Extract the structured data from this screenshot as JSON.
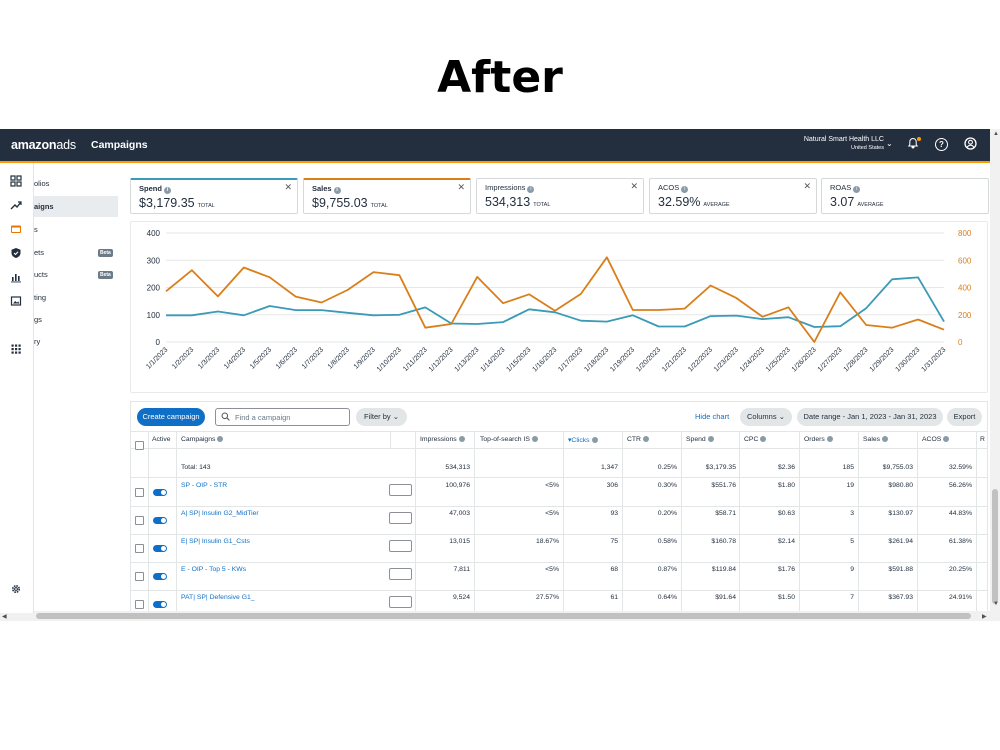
{
  "headline": "After",
  "app": {
    "logo_bold": "amazon",
    "logo_light": "ads",
    "nav_title": "Campaigns",
    "account_name": "Natural Smart Health LLC",
    "account_region": "United States"
  },
  "sidebar": {
    "items": [
      {
        "icon": "dashboard-icon",
        "label": "olios"
      },
      {
        "icon": "trend-icon",
        "label": "aigns"
      },
      {
        "icon": "wallet-icon",
        "label": "s"
      },
      {
        "icon": "shield-icon",
        "label": "ets",
        "badge": "Beta"
      },
      {
        "icon": "bar-chart-icon",
        "label": "ucts",
        "badge": "Beta"
      },
      {
        "icon": "image-icon",
        "label": "ting"
      },
      {
        "icon": "apps-icon",
        "label": "gs"
      },
      {
        "icon": "",
        "label": "ry"
      }
    ],
    "settings_icon": "gear-icon"
  },
  "metrics": [
    {
      "label": "Spend",
      "value": "$3,179.35",
      "sub": "TOTAL",
      "accent": "#3a9ab8"
    },
    {
      "label": "Sales",
      "value": "$9,755.03",
      "sub": "TOTAL",
      "accent": "#d97f1a"
    },
    {
      "label": "Impressions",
      "value": "534,313",
      "sub": "TOTAL",
      "accent": ""
    },
    {
      "label": "ACOS",
      "value": "32.59%",
      "sub": "AVERAGE",
      "accent": ""
    },
    {
      "label": "ROAS",
      "value": "3.07",
      "sub": "AVERAGE",
      "accent": ""
    }
  ],
  "chart_data": {
    "type": "line",
    "x": [
      "1/1/2023",
      "1/2/2023",
      "1/3/2023",
      "1/4/2023",
      "1/5/2023",
      "1/6/2023",
      "1/7/2023",
      "1/8/2023",
      "1/9/2023",
      "1/10/2023",
      "1/11/2023",
      "1/12/2023",
      "1/13/2023",
      "1/14/2023",
      "1/15/2023",
      "1/16/2023",
      "1/17/2023",
      "1/18/2023",
      "1/19/2023",
      "1/20/2023",
      "1/21/2023",
      "1/22/2023",
      "1/23/2023",
      "1/24/2023",
      "1/25/2023",
      "1/26/2023",
      "1/27/2023",
      "1/28/2023",
      "1/29/2023",
      "1/30/2023",
      "1/31/2023"
    ],
    "series": [
      {
        "name": "Spend",
        "axis": "left",
        "color": "#3a9ab8",
        "values": [
          98,
          98,
          112,
          98,
          132,
          117,
          117,
          107,
          98,
          100,
          127,
          68,
          66,
          73,
          120,
          109,
          78,
          75,
          98,
          57,
          57,
          95,
          97,
          84,
          91,
          55,
          58,
          124,
          230,
          237,
          75
        ]
      },
      {
        "name": "Sales",
        "axis": "right",
        "color": "#d97f1a",
        "values": [
          372,
          527,
          335,
          547,
          475,
          333,
          290,
          382,
          513,
          490,
          105,
          132,
          478,
          285,
          350,
          230,
          353,
          622,
          235,
          235,
          245,
          415,
          322,
          185,
          255,
          0,
          365,
          125,
          105,
          165,
          90
        ]
      }
    ],
    "y_left": {
      "ticks": [
        0,
        100,
        200,
        300,
        400
      ],
      "range": [
        0,
        400
      ]
    },
    "y_right": {
      "ticks": [
        0,
        200,
        400,
        600,
        800
      ],
      "range": [
        0,
        800
      ]
    },
    "grid": true
  },
  "toolbar": {
    "create_label": "Create campaign",
    "search_placeholder": "Find a campaign",
    "filter_label": "Filter by",
    "hide_chart_label": "Hide chart",
    "columns_label": "Columns",
    "date_range_label": "Date range - Jan 1, 2023 - Jan 31, 2023",
    "export_label": "Export"
  },
  "table": {
    "headers": {
      "active": "Active",
      "campaigns": "Campaigns",
      "impressions": "Impressions",
      "tos": "Top-of-search IS",
      "clicks": "Clicks",
      "ctr": "CTR",
      "spend": "Spend",
      "cpc": "CPC",
      "orders": "Orders",
      "sales": "Sales",
      "acos": "ACOS",
      "overflow": "R"
    },
    "total": {
      "label": "Total: 143",
      "impressions": "534,313",
      "clicks": "1,347",
      "ctr": "0.25%",
      "spend": "$3,179.35",
      "cpc": "$2.36",
      "orders": "185",
      "sales": "$9,755.03",
      "acos": "32.59%"
    },
    "rows": [
      {
        "name": "SP - OIP - STR",
        "impressions": "100,976",
        "tos": "<5%",
        "clicks": "306",
        "ctr": "0.30%",
        "spend": "$551.76",
        "cpc": "$1.80",
        "orders": "19",
        "sales": "$980.80",
        "acos": "56.26%"
      },
      {
        "name": "A| SP| Insulin G2_MidTier",
        "impressions": "47,003",
        "tos": "<5%",
        "clicks": "93",
        "ctr": "0.20%",
        "spend": "$58.71",
        "cpc": "$0.63",
        "orders": "3",
        "sales": "$130.97",
        "acos": "44.83%"
      },
      {
        "name": "E| SP| Insulin G1_Csts",
        "impressions": "13,015",
        "tos": "18.67%",
        "clicks": "75",
        "ctr": "0.58%",
        "spend": "$160.78",
        "cpc": "$2.14",
        "orders": "5",
        "sales": "$261.94",
        "acos": "61.38%"
      },
      {
        "name": "E - OIP - Top 5 - KWs",
        "impressions": "7,811",
        "tos": "<5%",
        "clicks": "68",
        "ctr": "0.87%",
        "spend": "$119.84",
        "cpc": "$1.76",
        "orders": "9",
        "sales": "$591.88",
        "acos": "20.25%"
      },
      {
        "name": "PAT| SP| Defensive G1_",
        "impressions": "9,524",
        "tos": "27.57%",
        "clicks": "61",
        "ctr": "0.64%",
        "spend": "$91.64",
        "cpc": "$1.50",
        "orders": "7",
        "sales": "$367.93",
        "acos": "24.91%"
      }
    ]
  }
}
